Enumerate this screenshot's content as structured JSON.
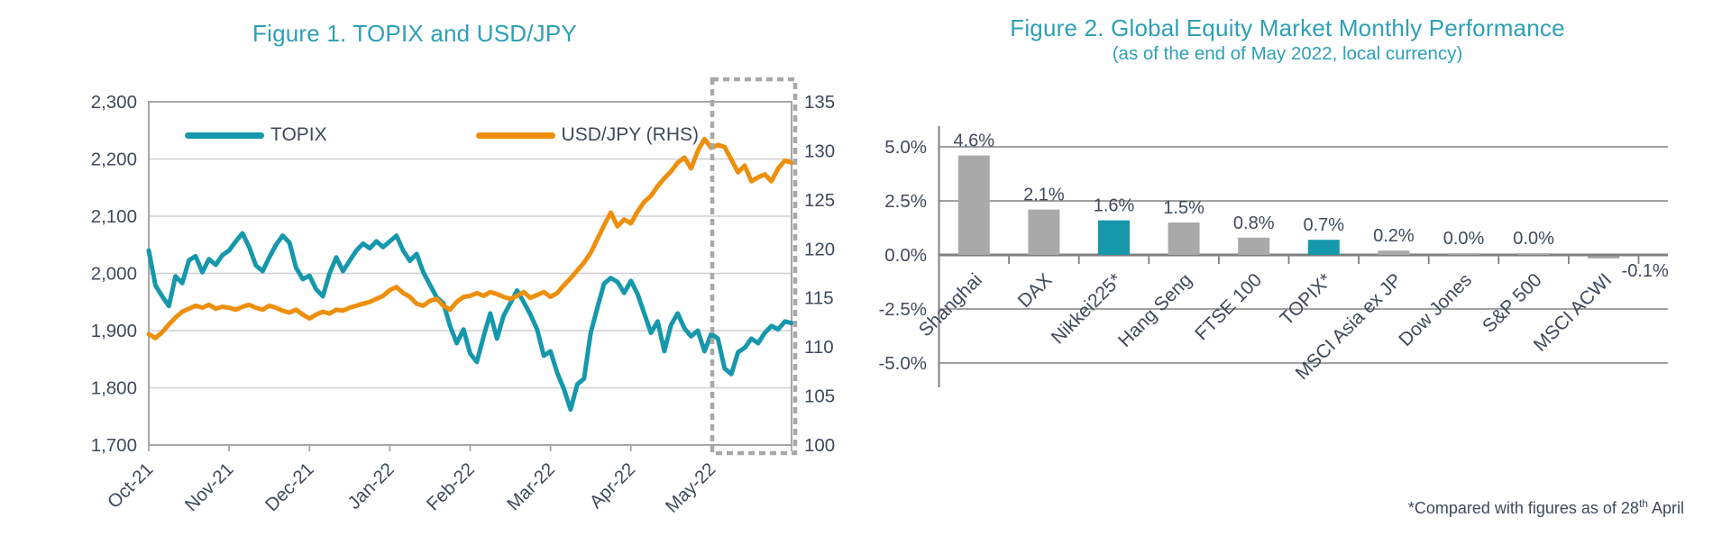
{
  "page": {
    "background": "#ffffff",
    "text_color": "#3E4A5C",
    "accent_teal": "#2E9FB7"
  },
  "chart_data": [
    {
      "id": "figure-1",
      "type": "line",
      "title": "Figure 1. TOPIX and USD/JPY",
      "x_tick_labels": [
        "Oct-21",
        "Nov-21",
        "Dec-21",
        "Jan-22",
        "Feb-22",
        "Mar-22",
        "Apr-22",
        "May-22"
      ],
      "left_axis": {
        "min": 1700,
        "max": 2300,
        "step": 100,
        "labels": [
          "2,300",
          "2,200",
          "2,100",
          "2,000",
          "1,900",
          "1,800",
          "1,700"
        ]
      },
      "right_axis": {
        "min": 100,
        "max": 135,
        "step": 5,
        "labels": [
          "135",
          "130",
          "125",
          "120",
          "115",
          "110",
          "105",
          "100"
        ]
      },
      "grid": true,
      "legend_position": "top-inside",
      "highlight_box": {
        "label": "May 2022 zoom region",
        "from_month": "May-22",
        "to": "end",
        "style": "gray-dashed"
      },
      "series": [
        {
          "name": "TOPIX",
          "axis": "left",
          "color": "#1598AC",
          "values": [
            2040,
            1979,
            1960,
            1943,
            1995,
            1983,
            2023,
            2030,
            2002,
            2025,
            2015,
            2032,
            2040,
            2056,
            2070,
            2046,
            2014,
            2004,
            2028,
            2050,
            2066,
            2054,
            2010,
            1990,
            1996,
            1972,
            1960,
            2000,
            2028,
            2004,
            2022,
            2040,
            2052,
            2044,
            2056,
            2046,
            2056,
            2066,
            2040,
            2022,
            2034,
            2002,
            1980,
            1958,
            1948,
            1908,
            1878,
            1902,
            1860,
            1845,
            1890,
            1930,
            1886,
            1926,
            1948,
            1970,
            1950,
            1928,
            1902,
            1856,
            1864,
            1826,
            1798,
            1762,
            1806,
            1816,
            1896,
            1940,
            1982,
            1992,
            1985,
            1966,
            1987,
            1964,
            1930,
            1896,
            1916,
            1864,
            1910,
            1930,
            1904,
            1890,
            1900,
            1864,
            1894,
            1886,
            1834,
            1824,
            1862,
            1870,
            1886,
            1878,
            1896,
            1908,
            1902,
            1916,
            1913
          ]
        },
        {
          "name": "USD/JPY (RHS)",
          "axis": "right",
          "color": "#EE8F0B",
          "values": [
            111.3,
            110.9,
            111.5,
            112.3,
            113.0,
            113.6,
            113.9,
            114.2,
            114.0,
            114.3,
            113.9,
            114.1,
            114.0,
            113.8,
            114.1,
            114.3,
            114.0,
            113.8,
            114.2,
            114.0,
            113.7,
            113.5,
            113.8,
            113.3,
            112.9,
            113.3,
            113.6,
            113.4,
            113.8,
            113.7,
            114.0,
            114.2,
            114.4,
            114.6,
            114.9,
            115.2,
            115.8,
            116.1,
            115.5,
            115.1,
            114.4,
            114.2,
            114.7,
            114.9,
            114.2,
            113.8,
            114.6,
            115.1,
            115.2,
            115.5,
            115.2,
            115.6,
            115.4,
            115.1,
            114.9,
            115.2,
            115.6,
            115.0,
            115.3,
            115.6,
            115.1,
            115.5,
            116.3,
            117.0,
            117.8,
            118.6,
            119.6,
            121.0,
            122.4,
            123.7,
            122.3,
            123.0,
            122.6,
            123.8,
            124.8,
            125.4,
            126.4,
            127.2,
            127.9,
            128.8,
            129.3,
            128.2,
            130.0,
            131.2,
            130.3,
            130.6,
            130.4,
            129.1,
            127.8,
            128.5,
            126.9,
            127.3,
            127.6,
            126.9,
            128.2,
            129.0,
            128.8
          ]
        }
      ]
    },
    {
      "id": "figure-2",
      "type": "bar",
      "title": "Figure 2. Global Equity Market Monthly Performance",
      "subtitle": "(as of the end of May 2022, local currency)",
      "categories": [
        "Shanghai",
        "DAX",
        "Nikkei225*",
        "Hang Seng",
        "FTSE 100",
        "TOPIX*",
        "MSCI Asia ex JP",
        "Dow Jones",
        "S&P 500",
        "MSCI ACWI"
      ],
      "values": [
        4.6,
        2.1,
        1.6,
        1.5,
        0.8,
        0.7,
        0.2,
        0.0,
        0.0,
        -0.1
      ],
      "value_labels": [
        "4.6%",
        "2.1%",
        "1.6%",
        "1.5%",
        "0.8%",
        "0.7%",
        "0.2%",
        "0.0%",
        "0.0%",
        "-0.1%"
      ],
      "bar_colors": [
        "#A9A9A9",
        "#A9A9A9",
        "#1598AC",
        "#A9A9A9",
        "#A9A9A9",
        "#1598AC",
        "#A9A9A9",
        "#A9A9A9",
        "#A9A9A9",
        "#A9A9A9"
      ],
      "highlight_color": "#1598AC",
      "default_bar_color": "#A9A9A9",
      "ylim": [
        -5,
        5
      ],
      "y_ticks": [
        5,
        2.5,
        0,
        -2.5,
        -5
      ],
      "y_tick_labels": [
        "5.0%",
        "2.5%",
        "0.0%",
        "-2.5%",
        "-5.0%"
      ],
      "grid": true,
      "footnote": {
        "pre": "*Compared with figures as of 28",
        "sup": "th",
        "post": " April"
      }
    }
  ]
}
